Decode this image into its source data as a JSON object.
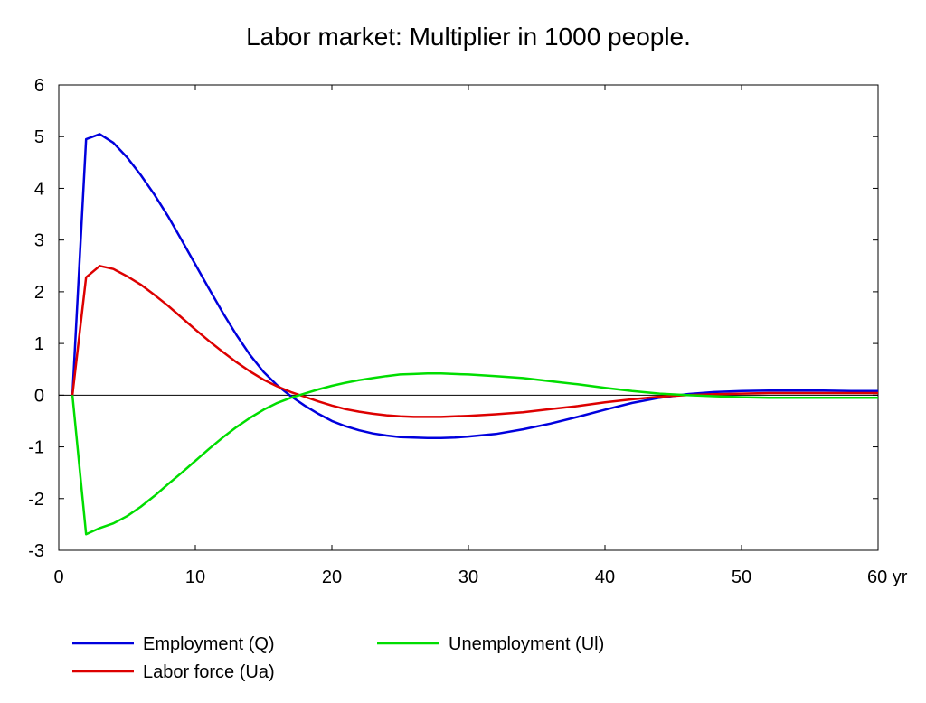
{
  "chart_data": {
    "type": "line",
    "title": "Labor market: Multiplier in 1000 people.",
    "x_unit_label": "yr",
    "xlim": [
      0,
      60
    ],
    "ylim": [
      -3,
      6
    ],
    "x_ticks": [
      0,
      10,
      20,
      30,
      40,
      50,
      60
    ],
    "x_tick_labels": [
      "0",
      "10",
      "20",
      "30",
      "40",
      "50",
      "60 yr"
    ],
    "y_ticks": [
      6,
      5,
      4,
      3,
      2,
      1,
      0,
      -1,
      -2,
      -3
    ],
    "y_tick_labels": [
      "6",
      "5",
      "4",
      "3",
      "2",
      "1",
      "0",
      "-1",
      "-2",
      "-3"
    ],
    "zero_line": true,
    "grid": false,
    "legend_position": "bottom",
    "x": [
      1,
      2,
      3,
      4,
      5,
      6,
      7,
      8,
      9,
      10,
      11,
      12,
      13,
      14,
      15,
      16,
      17,
      18,
      19,
      20,
      21,
      22,
      23,
      24,
      25,
      26,
      27,
      28,
      29,
      30,
      32,
      34,
      36,
      38,
      40,
      42,
      44,
      46,
      48,
      50,
      52,
      54,
      56,
      58,
      60
    ],
    "series": [
      {
        "name": "Employment (Q)",
        "color": "#0000dd",
        "values": [
          0,
          4.95,
          5.05,
          4.88,
          4.6,
          4.26,
          3.88,
          3.46,
          3.0,
          2.53,
          2.06,
          1.6,
          1.17,
          0.78,
          0.45,
          0.19,
          -0.02,
          -0.2,
          -0.36,
          -0.5,
          -0.6,
          -0.68,
          -0.74,
          -0.78,
          -0.81,
          -0.82,
          -0.83,
          -0.83,
          -0.82,
          -0.8,
          -0.75,
          -0.66,
          -0.55,
          -0.42,
          -0.28,
          -0.15,
          -0.05,
          0.02,
          0.06,
          0.08,
          0.09,
          0.09,
          0.09,
          0.08,
          0.08
        ]
      },
      {
        "name": "Labor force (Ua)",
        "color": "#dd0000",
        "values": [
          0,
          2.28,
          2.5,
          2.44,
          2.3,
          2.14,
          1.94,
          1.73,
          1.5,
          1.27,
          1.05,
          0.84,
          0.64,
          0.46,
          0.3,
          0.17,
          0.06,
          -0.03,
          -0.12,
          -0.2,
          -0.27,
          -0.32,
          -0.36,
          -0.39,
          -0.41,
          -0.42,
          -0.42,
          -0.42,
          -0.41,
          -0.4,
          -0.37,
          -0.33,
          -0.27,
          -0.21,
          -0.14,
          -0.08,
          -0.03,
          0.0,
          0.02,
          0.03,
          0.04,
          0.04,
          0.04,
          0.04,
          0.04
        ]
      },
      {
        "name": "Unemployment (Ul)",
        "color": "#00dd00",
        "values": [
          0,
          -2.69,
          -2.57,
          -2.48,
          -2.34,
          -2.16,
          -1.95,
          -1.72,
          -1.5,
          -1.27,
          -1.04,
          -0.82,
          -0.62,
          -0.44,
          -0.28,
          -0.15,
          -0.05,
          0.03,
          0.11,
          0.18,
          0.24,
          0.29,
          0.33,
          0.37,
          0.4,
          0.41,
          0.42,
          0.42,
          0.41,
          0.4,
          0.37,
          0.33,
          0.27,
          0.21,
          0.14,
          0.08,
          0.03,
          0.0,
          -0.02,
          -0.04,
          -0.05,
          -0.05,
          -0.05,
          -0.05,
          -0.05
        ]
      }
    ]
  }
}
